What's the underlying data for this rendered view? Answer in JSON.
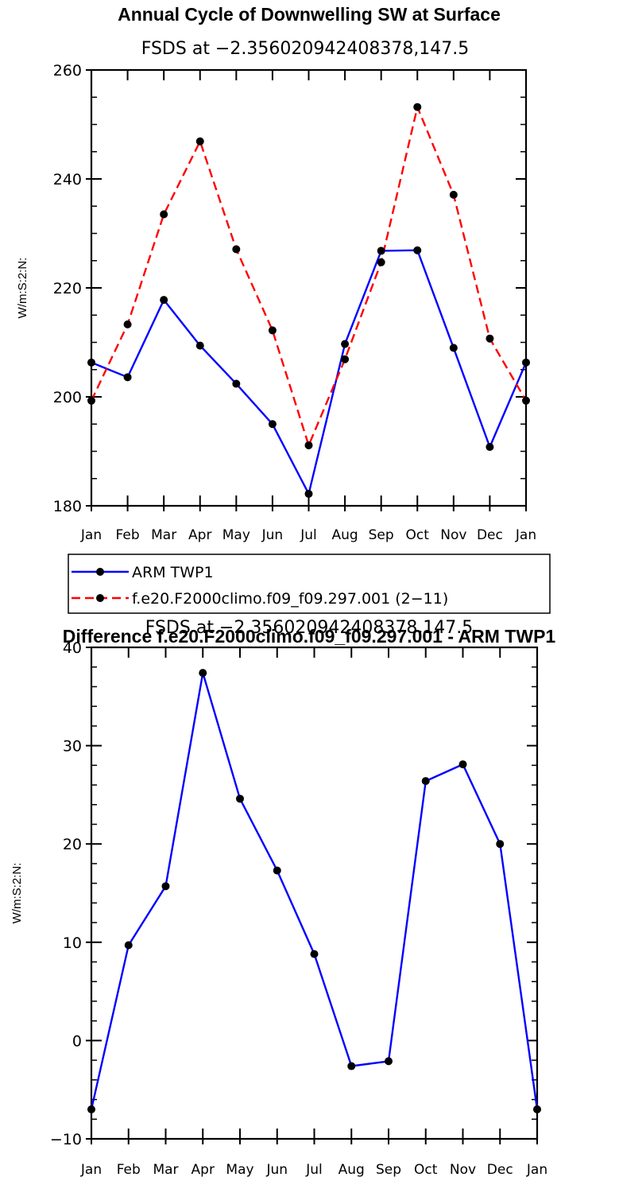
{
  "chart_data": [
    {
      "type": "line",
      "title": "Annual Cycle of Downwelling SW at Surface",
      "subtitle": "FSDS at −2.356020942408378,147.5",
      "xlabel": "",
      "ylabel": "W/m:S:2:N:",
      "categories": [
        "Jan",
        "Feb",
        "Mar",
        "Apr",
        "May",
        "Jun",
        "Jul",
        "Aug",
        "Sep",
        "Oct",
        "Nov",
        "Dec",
        "Jan"
      ],
      "ylim": [
        180,
        260
      ],
      "yticks": [
        "180",
        "200",
        "220",
        "240",
        "260"
      ],
      "series": [
        {
          "name": "ARM TWP1",
          "color": "#0000ff",
          "dash": "solid",
          "values": [
            206.3,
            203.6,
            217.8,
            209.4,
            202.4,
            195.0,
            182.2,
            209.7,
            226.8,
            226.9,
            209.0,
            190.8,
            206.3
          ]
        },
        {
          "name": "f.e20.F2000climo.f09_f09.297.001 (2−11)",
          "color": "#ff0000",
          "dash": "dashed",
          "values": [
            199.3,
            213.3,
            233.5,
            246.9,
            227.1,
            212.2,
            191.1,
            206.9,
            224.7,
            253.2,
            237.1,
            210.7,
            199.3
          ]
        }
      ],
      "legend": "bottom-left"
    },
    {
      "type": "line",
      "title": "Difference f.e20.F2000climo.f09_f09.297.001 - ARM TWP1",
      "subtitle": "FSDS at −2.356020942408378,147.5",
      "xlabel": "",
      "ylabel": "W/m:S:2:N:",
      "categories": [
        "Jan",
        "Feb",
        "Mar",
        "Apr",
        "May",
        "Jun",
        "Jul",
        "Aug",
        "Sep",
        "Oct",
        "Nov",
        "Dec",
        "Jan"
      ],
      "ylim": [
        -10,
        40
      ],
      "yticks": [
        "−10",
        "0",
        "10",
        "20",
        "30",
        "40"
      ],
      "series": [
        {
          "name": "Difference",
          "color": "#0000ff",
          "dash": "solid",
          "values": [
            -7.0,
            9.7,
            15.7,
            37.4,
            24.6,
            17.3,
            8.8,
            -2.6,
            -2.1,
            26.4,
            28.1,
            20.0,
            -7.0
          ]
        }
      ]
    }
  ]
}
